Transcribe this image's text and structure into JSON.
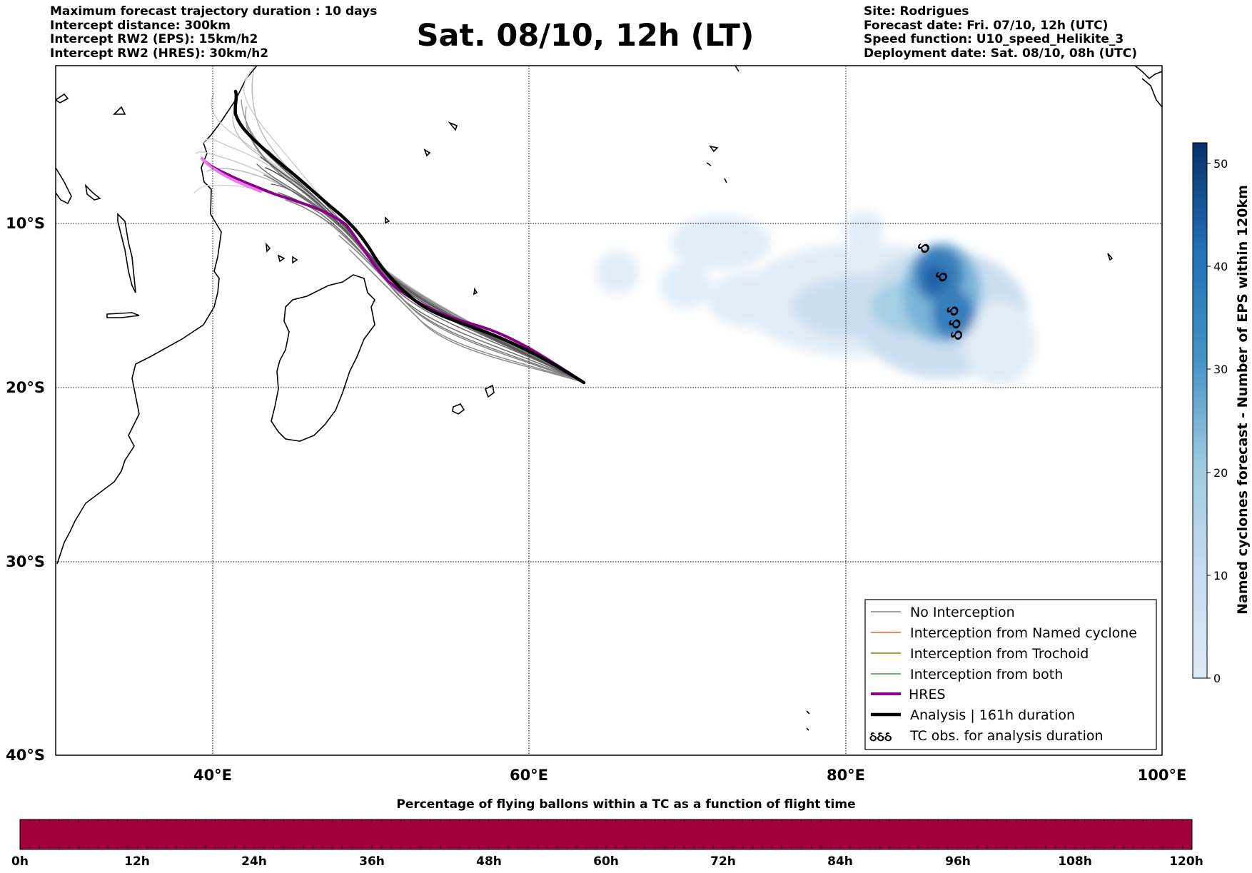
{
  "title": "Sat. 08/10, 12h (LT)",
  "info_left": [
    "Maximum forecast trajectory duration : 10 days",
    "Intercept distance: 300km",
    "Intercept RW2 (EPS):  15km/h2",
    "Intercept RW2 (HRES): 30km/h2"
  ],
  "info_right": [
    "Site: Rodrigues",
    "Forecast date: Fri. 07/10, 12h (UTC)",
    "Speed function: U10_speed_Helikite_3",
    "Deployment date: Sat. 08/10, 08h (UTC)"
  ],
  "map": {
    "lon_ticks": [
      "40°E",
      "60°E",
      "80°E",
      "100°E"
    ],
    "lat_ticks": [
      "10°S",
      "20°S",
      "30°S",
      "40°S"
    ],
    "grid": true
  },
  "legend": {
    "items": [
      {
        "label": "No Interception",
        "color": "#808080"
      },
      {
        "label": "Interception from Named cyclone",
        "color": "#e8601c"
      },
      {
        "label": "Interception from Trochoid",
        "color": "#808000"
      },
      {
        "label": "Interception from both",
        "color": "#2ca02c"
      },
      {
        "label": "HRES",
        "color": "#8b008b"
      },
      {
        "label": "Analysis | 161h duration",
        "color": "#000000"
      },
      {
        "label": "TC obs. for analysis duration",
        "color": "#000000"
      }
    ]
  },
  "colorbar_right": {
    "label": "Named cyclones forecast - Number of EPS within 120km",
    "ticks": [
      "0",
      "10",
      "20",
      "30",
      "40",
      "50"
    ],
    "range": [
      0,
      52
    ],
    "colors": [
      "#deebf7",
      "#08306b"
    ]
  },
  "colorbar_bottom": {
    "title": "Percentage of flying ballons within a TC as a function of flight time",
    "ticks": [
      "0h",
      "12h",
      "24h",
      "36h",
      "48h",
      "60h",
      "72h",
      "84h",
      "96h",
      "108h",
      "120h"
    ],
    "fill_color": "#a0003c"
  }
}
